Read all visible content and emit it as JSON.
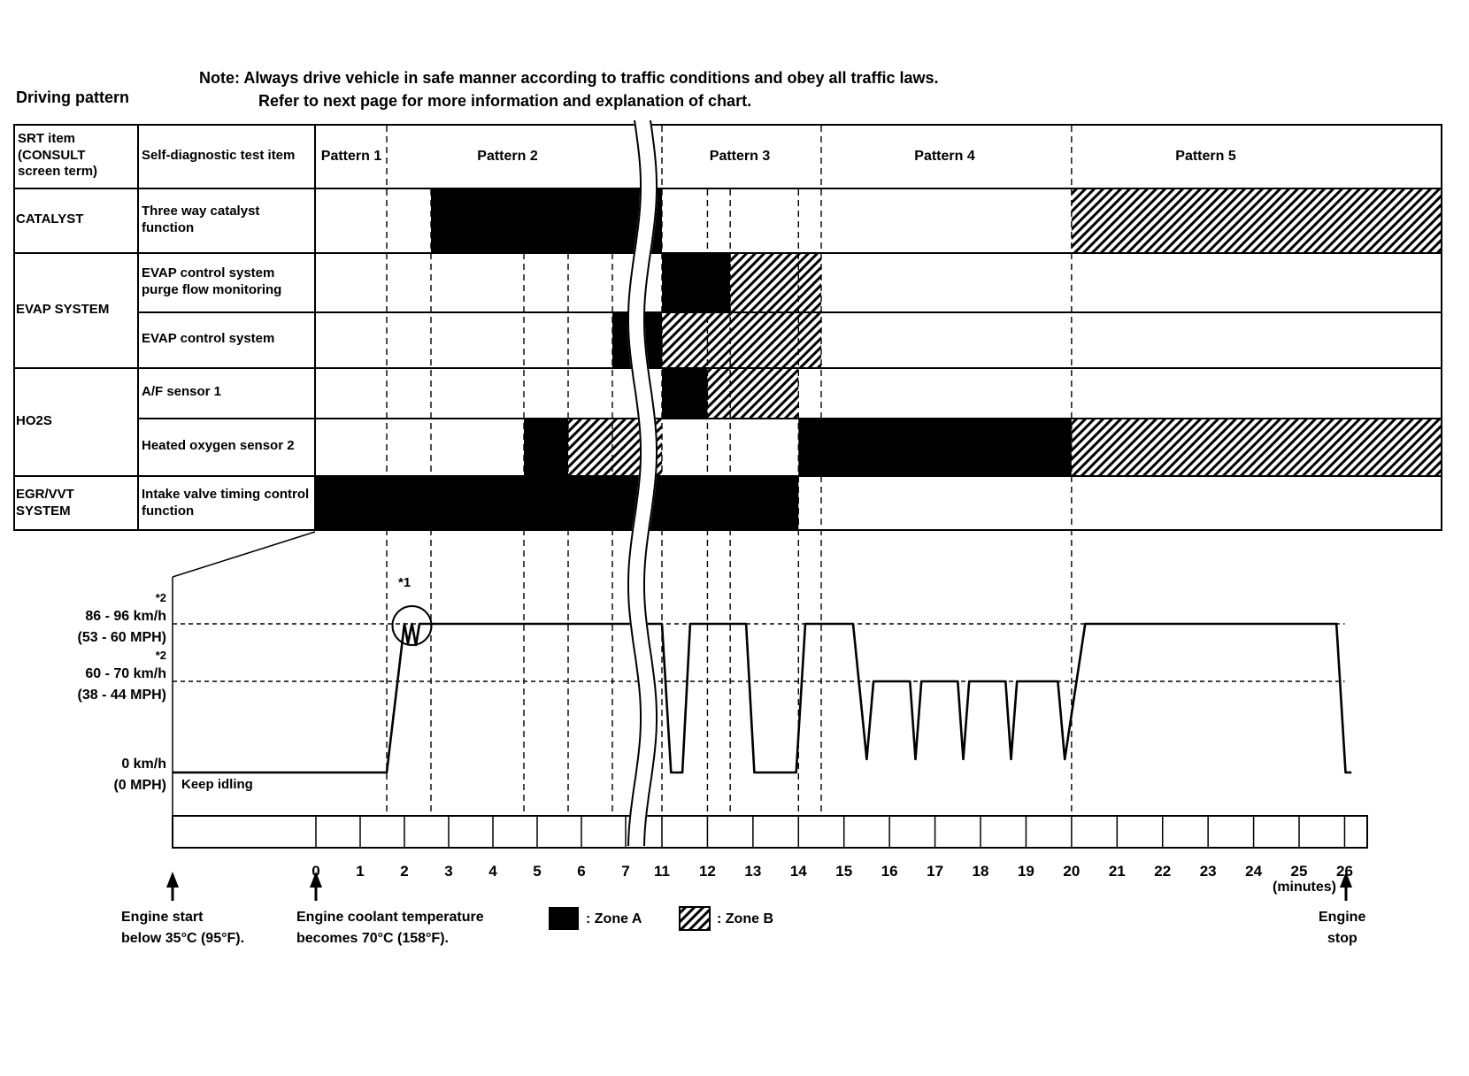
{
  "page": {
    "title": "Driving pattern",
    "note_line1": "Note: Always drive vehicle in safe manner according to traffic conditions and obey all traffic laws.",
    "note_line2": "Refer to next page for more information and explanation of chart."
  },
  "table": {
    "col1_header": "SRT item (CONSULT screen term)",
    "col2_header": "Self-diagnostic test item",
    "patterns": [
      "Pattern 1",
      "Pattern 2",
      "Pattern 3",
      "Pattern 4",
      "Pattern 5"
    ],
    "groups": [
      "CATALYST",
      "EVAP SYSTEM",
      "HO2S",
      "EGR/VVT SYSTEM"
    ],
    "test_items": [
      "Three way catalyst function",
      "EVAP control system purge flow monitoring",
      "EVAP control system",
      "A/F sensor 1",
      "Heated oxygen sensor 2",
      "Intake valve timing control function"
    ]
  },
  "chart_data": {
    "type": "timeline-bars+line",
    "title": "Driving pattern",
    "x_unit": "(minutes)",
    "x_ticks": [
      0,
      1,
      2,
      3,
      4,
      5,
      6,
      7,
      11,
      12,
      13,
      14,
      15,
      16,
      17,
      18,
      19,
      20,
      21,
      22,
      23,
      24,
      25,
      26
    ],
    "axis_break_between": [
      7,
      11
    ],
    "pattern_boundaries_min": [
      1.6,
      11,
      14.5,
      20
    ],
    "grid_minutes": [
      2.6,
      4.7,
      5.7,
      6.7,
      12,
      12.5,
      14
    ],
    "bars": [
      {
        "row": "three-way-catalyst-function",
        "segments": [
          {
            "zone": "A",
            "start": 2.6,
            "end": 11
          },
          {
            "zone": "B",
            "start": 20,
            "end": "edge"
          }
        ]
      },
      {
        "row": "evap-purge-flow-monitoring",
        "segments": [
          {
            "zone": "A",
            "start": 11,
            "end": 12.5
          },
          {
            "zone": "B",
            "start": 12.5,
            "end": 14.5
          }
        ]
      },
      {
        "row": "evap-control-system",
        "segments": [
          {
            "zone": "A",
            "start": 6.7,
            "end": 11
          },
          {
            "zone": "B",
            "start": 11,
            "end": 14.5
          }
        ]
      },
      {
        "row": "af-sensor-1",
        "segments": [
          {
            "zone": "A",
            "start": 11,
            "end": 12
          },
          {
            "zone": "B",
            "start": 12,
            "end": 14
          }
        ]
      },
      {
        "row": "heated-oxygen-sensor-2",
        "segments": [
          {
            "zone": "A",
            "start": 4.7,
            "end": 5.7
          },
          {
            "zone": "B",
            "start": 5.7,
            "end": 11
          },
          {
            "zone": "A",
            "start": 14,
            "end": 20
          },
          {
            "zone": "B",
            "start": 20,
            "end": "edge"
          }
        ]
      },
      {
        "row": "intake-valve-timing-control",
        "segments": [
          {
            "zone": "A",
            "start": 0,
            "end": 14
          }
        ]
      }
    ],
    "speed_axis": {
      "high": {
        "note": "*2",
        "label": "86 - 96 km/h",
        "sub": "(53 - 60 MPH)"
      },
      "mid": {
        "note": "*2",
        "label": "60 - 70 km/h",
        "sub": "(38 - 44 MPH)"
      },
      "zero": {
        "label": "0 km/h",
        "sub": "(0 MPH)"
      }
    },
    "keep_idling": "Keep idling",
    "annotation_1": "*1",
    "speed_points": [
      [
        -3.24,
        "zero"
      ],
      [
        1.6,
        "zero"
      ],
      [
        2.0,
        "high"
      ],
      [
        2.08,
        727
      ],
      [
        2.17,
        "high"
      ],
      [
        2.26,
        729
      ],
      [
        2.34,
        "high"
      ],
      [
        11.0,
        "high"
      ],
      [
        11.2,
        "zero"
      ],
      [
        11.45,
        "zero"
      ],
      [
        11.62,
        "high"
      ],
      [
        12.85,
        "high"
      ],
      [
        13.03,
        "zero"
      ],
      [
        13.95,
        "zero"
      ],
      [
        14.15,
        "high"
      ],
      [
        15.2,
        "high"
      ],
      [
        15.5,
        "dip"
      ],
      [
        15.65,
        "mid"
      ],
      [
        16.45,
        "mid"
      ],
      [
        16.57,
        "dip"
      ],
      [
        16.7,
        "mid"
      ],
      [
        17.5,
        "mid"
      ],
      [
        17.62,
        "dip"
      ],
      [
        17.75,
        "mid"
      ],
      [
        18.55,
        "mid"
      ],
      [
        18.67,
        "dip"
      ],
      [
        18.8,
        "mid"
      ],
      [
        19.7,
        "mid"
      ],
      [
        19.85,
        "dip"
      ],
      [
        20.3,
        "high"
      ],
      [
        25.82,
        "high"
      ],
      [
        26.02,
        "zero"
      ],
      [
        26.15,
        "zero"
      ]
    ],
    "speed_levels_kmh": {
      "high": "86-96",
      "mid": "60-70",
      "zero": "0"
    },
    "legend": {
      "zone_a": ": Zone A",
      "zone_b": ": Zone B"
    },
    "events": {
      "engine_start": {
        "line1": "Engine start",
        "line2": "below 35°C (95°F)."
      },
      "coolant": {
        "line1": "Engine coolant temperature",
        "line2": "becomes 70°C (158°F)."
      },
      "engine_stop": {
        "line1": "Engine",
        "line2": "stop"
      }
    },
    "colors": {
      "zone_a": "#000000",
      "background": "#ffffff"
    }
  }
}
